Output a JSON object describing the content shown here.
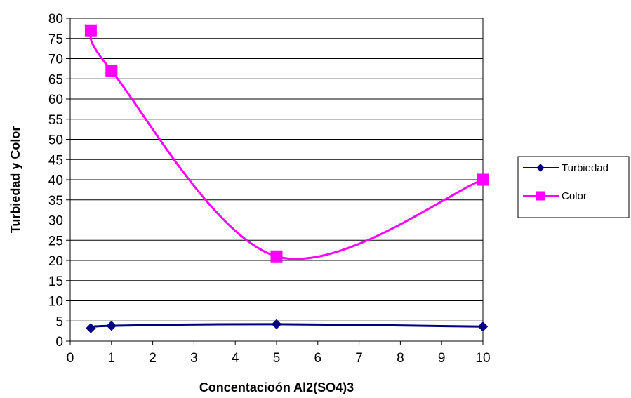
{
  "chart_data": {
    "type": "line",
    "title": "",
    "xlabel": "Concentacioón Al2(SO4)3",
    "ylabel": "Turbiedad y Color",
    "xlim": [
      0,
      10
    ],
    "ylim": [
      0,
      80
    ],
    "xticks": [
      0,
      1,
      2,
      3,
      4,
      5,
      6,
      7,
      8,
      9,
      10
    ],
    "yticks": [
      0,
      5,
      10,
      15,
      20,
      25,
      30,
      35,
      40,
      45,
      50,
      55,
      60,
      65,
      70,
      75,
      80
    ],
    "grid": "horizontal",
    "smooth": true,
    "legend_position": "right",
    "series": [
      {
        "name": "Turbiedad",
        "color": "#000080",
        "marker": "diamond",
        "x": [
          0.5,
          1,
          5,
          10
        ],
        "y": [
          3.2,
          3.8,
          4.2,
          3.6
        ]
      },
      {
        "name": "Color",
        "color": "#ff00ff",
        "marker": "square",
        "x": [
          0.5,
          1,
          5,
          10
        ],
        "y": [
          77,
          67,
          21,
          40
        ]
      }
    ]
  }
}
